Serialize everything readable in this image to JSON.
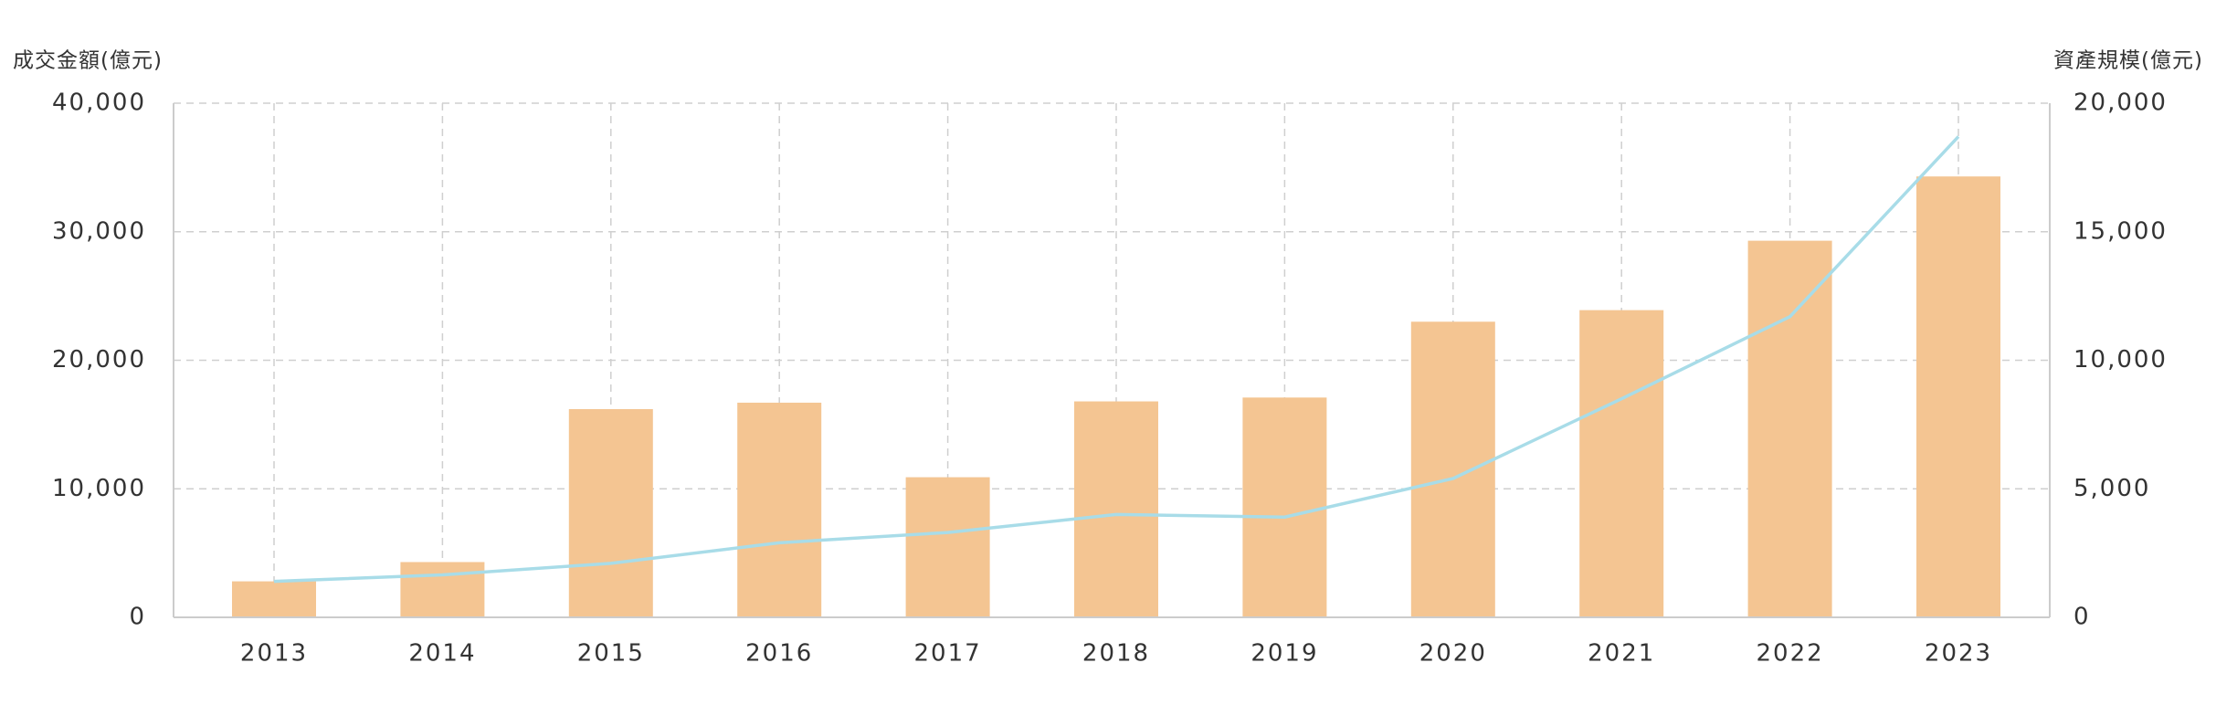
{
  "chart_data": {
    "type": "bar-line",
    "y_label": "成交金額(億元)",
    "y2_label": "資產規模(億元)",
    "categories": [
      "2013",
      "2014",
      "2015",
      "2016",
      "2017",
      "2018",
      "2019",
      "2020",
      "2021",
      "2022",
      "2023"
    ],
    "series": [
      {
        "type": "bar",
        "color": "#f4c592",
        "values": [
          2800,
          4300,
          16200,
          16700,
          10900,
          16800,
          17100,
          23000,
          23900,
          29300,
          34300
        ]
      },
      {
        "type": "line",
        "axis": "y2",
        "color": "#a8dce8",
        "values": [
          1400,
          1650,
          2100,
          2900,
          3300,
          4000,
          3900,
          5400,
          8500,
          11700,
          18700
        ]
      }
    ],
    "ylim": [
      0,
      40000
    ],
    "yticks": [
      0,
      {
        "value": 10000,
        "label": "10,000"
      },
      {
        "value": 20000,
        "label": "20,000"
      },
      {
        "value": 30000,
        "label": "30,000"
      },
      {
        "value": 40000,
        "label": "40,000"
      }
    ],
    "y2lim": [
      0,
      20000
    ],
    "y2ticks": [
      0,
      {
        "value": 5000,
        "label": "5,000"
      },
      {
        "value": 10000,
        "label": "10,000"
      },
      {
        "value": 15000,
        "label": "15,000"
      },
      {
        "value": 20000,
        "label": "20,000"
      }
    ],
    "grid": true
  }
}
